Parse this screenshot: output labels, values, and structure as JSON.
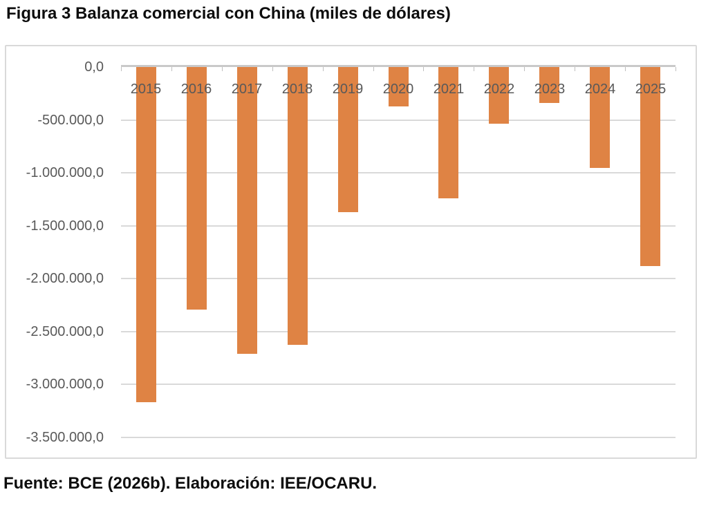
{
  "figure": {
    "title": "Figura 3 Balanza comercial con China (miles de dólares)",
    "source_note": "Fuente: BCE (2026b). Elaboración: IEE/OCARU."
  },
  "chart_data": {
    "type": "bar",
    "title": "Figura 3 Balanza comercial con China (miles de dólares)",
    "unit": "miles de dólares",
    "orientation": "vertical",
    "categories": [
      "2015",
      "2016",
      "2017",
      "2018",
      "2019",
      "2020",
      "2021",
      "2022",
      "2023",
      "2024",
      "2025"
    ],
    "values": [
      -3165000,
      -2290000,
      -2710000,
      -2625000,
      -1370000,
      -370000,
      -1240000,
      -535000,
      -340000,
      -955000,
      -1880000
    ],
    "ylim": [
      -3500000,
      0
    ],
    "ytick_interval": 500000,
    "ytick_labels": [
      "0,0",
      "-500.000,0",
      "-1.000.000,0",
      "-1.500.000,0",
      "-2.000.000,0",
      "-2.500.000,0",
      "-3.000.000,0",
      "-3.500.000,0"
    ],
    "grid": true,
    "legend": "none",
    "xlabel": "",
    "ylabel": "",
    "source": "Fuente: BCE (2026b). Elaboración: IEE/OCARU.",
    "colors": {
      "bar": "#DF8344",
      "axis_labels": "#595959",
      "gridline": "#D9D9D9",
      "axis_line": "#C9C9C9",
      "tick": "#BFBFBF",
      "chart_border": "#D9D9D9",
      "text": "#0D0D0D"
    }
  }
}
